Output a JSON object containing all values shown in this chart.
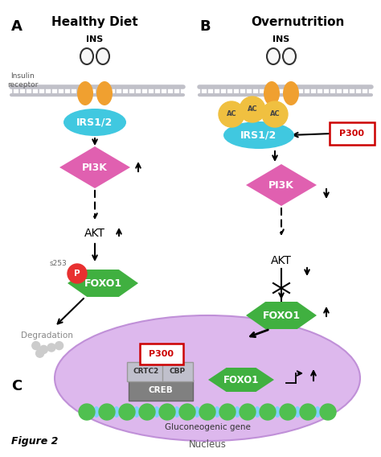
{
  "panel_A_label": "A",
  "panel_B_label": "B",
  "panel_C_label": "C",
  "panel_A_title": "Healthy Diet",
  "panel_B_title": "Overnutrition",
  "bg_color": "#ffffff",
  "nucleus_color": "#ddb8ed",
  "nucleus_edge": "#c090d8",
  "membrane_color": "#c0c0c8",
  "receptor_color": "#f0a030",
  "irs_color": "#40c8e0",
  "pi3k_color": "#e060b0",
  "foxo1_color": "#40b040",
  "p_color": "#e83030",
  "ac_color": "#f0c040",
  "p300_border": "#cc0000",
  "creb_color": "#808080",
  "crtc2_color": "#c0c0cc",
  "cbp_color": "#c0c0cc",
  "dna_color1": "#50c050",
  "dna_color2": "#80d0ff",
  "degradation_color": "#cccccc",
  "figure2_label": "Figure 2",
  "nucleus_label": "Nucleus",
  "gluco_label": "Gluconeogenic gene"
}
